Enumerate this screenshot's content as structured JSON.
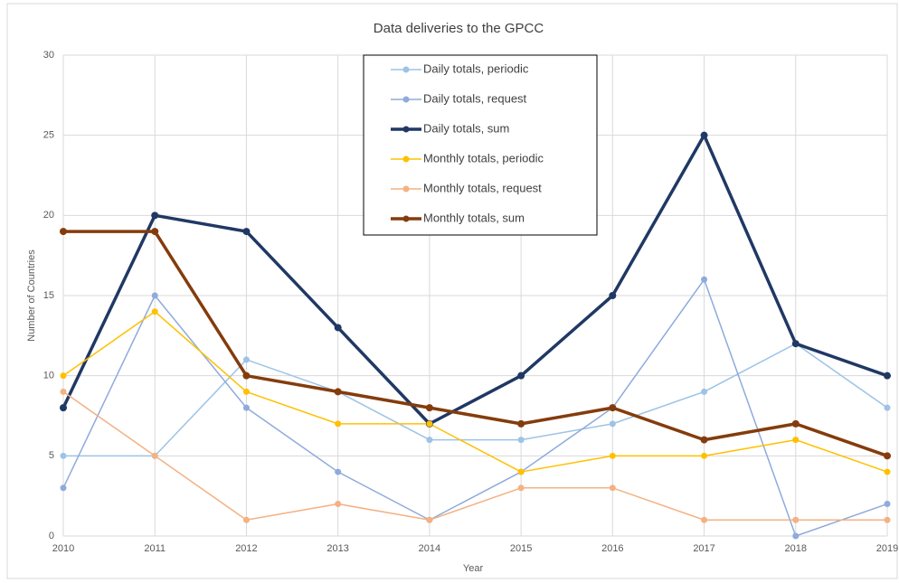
{
  "chart_data": {
    "type": "line",
    "title": "Data deliveries to the GPCC",
    "x_label": "Year",
    "y_label": "Number of Countries",
    "x": [
      2010,
      2011,
      2012,
      2013,
      2014,
      2015,
      2016,
      2017,
      2018,
      2019
    ],
    "xlim": [
      2010,
      2019
    ],
    "xticks": [
      2010,
      2011,
      2012,
      2013,
      2014,
      2015,
      2016,
      2017,
      2018,
      2019
    ],
    "ylim": [
      0,
      30
    ],
    "yticks": [
      0,
      5,
      10,
      15,
      20,
      25,
      30
    ],
    "grid": true,
    "legend": "top",
    "series": [
      {
        "name": "Daily totals, periodic",
        "color": "#9dc3e6",
        "values": [
          5,
          5,
          11,
          9,
          6,
          6,
          7,
          9,
          12,
          8
        ]
      },
      {
        "name": "Daily totals, request",
        "color": "#8faadc",
        "values": [
          3,
          15,
          8,
          4,
          1,
          4,
          8,
          16,
          0,
          2
        ]
      },
      {
        "name": "Daily totals, sum",
        "color": "#203864",
        "values": [
          8,
          20,
          19,
          13,
          7,
          10,
          15,
          25,
          12,
          10
        ]
      },
      {
        "name": "Monthly totals, periodic",
        "color": "#ffc000",
        "values": [
          10,
          14,
          9,
          7,
          7,
          4,
          5,
          5,
          6,
          4
        ]
      },
      {
        "name": "Monthly totals, request",
        "color": "#f4b183",
        "values": [
          9,
          5,
          1,
          2,
          1,
          3,
          3,
          1,
          1,
          1
        ]
      },
      {
        "name": "Monthly totals, sum",
        "color": "#843c0c",
        "values": [
          19,
          19,
          10,
          9,
          8,
          7,
          8,
          6,
          7,
          5
        ]
      }
    ]
  }
}
